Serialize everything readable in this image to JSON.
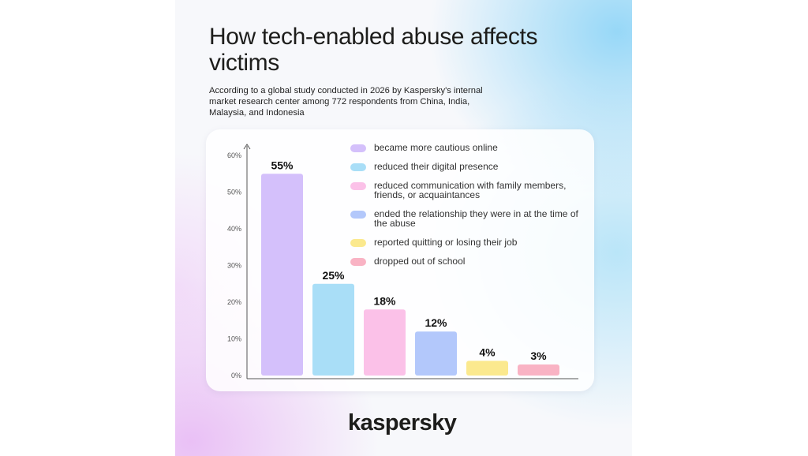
{
  "title": "How tech-enabled abuse affects victims",
  "subtitle": "According to a global study conducted in 2026 by Kaspersky's internal market research center among 772 respondents from China, India, Malaysia, and Indonesia",
  "brand": "kaspersky",
  "chart_data": {
    "type": "bar",
    "categories": [
      "became more cautious online",
      "reduced their digital presence",
      "reduced communication with family members, friends, or acquaintances",
      "ended the relationship they were in at the time of the abuse",
      "reported quitting or losing their job",
      "dropped out of school"
    ],
    "values": [
      55,
      25,
      18,
      12,
      4,
      3
    ],
    "value_labels": [
      "55%",
      "25%",
      "18%",
      "12%",
      "4%",
      "3%"
    ],
    "colors": [
      "#d4c0fb",
      "#a9def7",
      "#fbc1e8",
      "#b3c8fb",
      "#fbe98e",
      "#f9b3c4"
    ],
    "yticks": [
      "0%",
      "10%",
      "20%",
      "30%",
      "40%",
      "50%",
      "60%"
    ],
    "legend_position": "top-right",
    "grid": false
  }
}
